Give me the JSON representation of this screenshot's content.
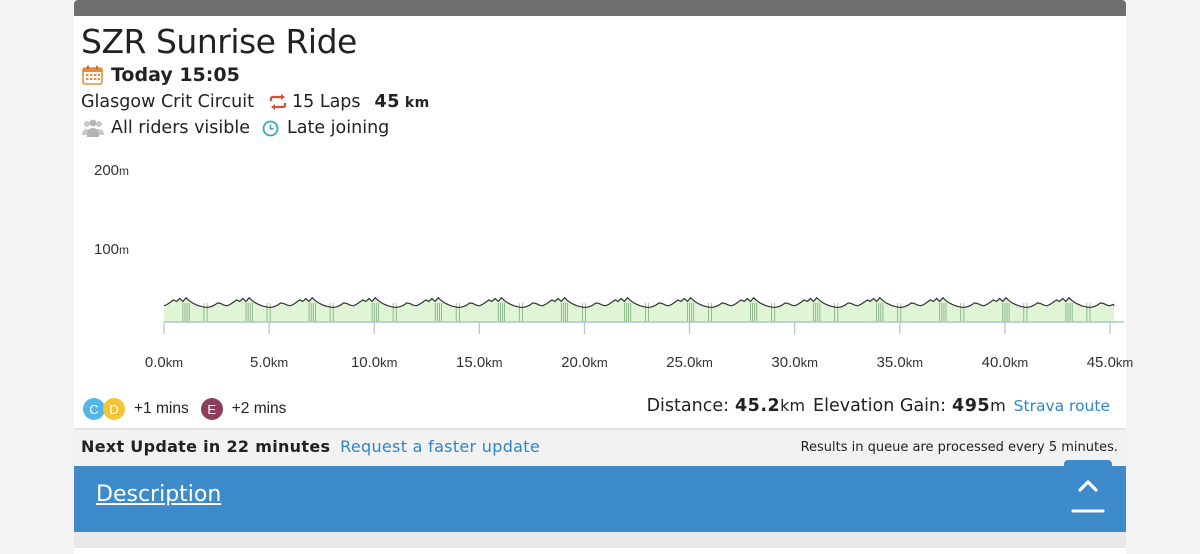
{
  "event": {
    "title": "SZR Sunrise Ride",
    "date": "Today 15:05",
    "route": "Glasgow Crit Circuit",
    "laps": "15 Laps",
    "distance": "45",
    "distance_unit": "km",
    "visibility": "All riders visible",
    "late_joining": "Late joining"
  },
  "chart_data": {
    "type": "area",
    "title": "",
    "xlabel": "",
    "ylabel": "",
    "y_ticks": [
      "200m",
      "100m"
    ],
    "x_ticks": [
      "0.0km",
      "5.0km",
      "10.0km",
      "15.0km",
      "20.0km",
      "25.0km",
      "30.0km",
      "35.0km",
      "40.0km",
      "45.0km"
    ],
    "xlim": [
      0,
      45.2
    ],
    "ylim": [
      0,
      200
    ],
    "lap_length_km": 3,
    "lap_profile": [
      {
        "x": 0.0,
        "y": 22
      },
      {
        "x": 0.15,
        "y": 24
      },
      {
        "x": 0.3,
        "y": 27
      },
      {
        "x": 0.45,
        "y": 30
      },
      {
        "x": 0.6,
        "y": 28
      },
      {
        "x": 0.75,
        "y": 32
      },
      {
        "x": 0.9,
        "y": 28
      },
      {
        "x": 1.05,
        "y": 33
      },
      {
        "x": 1.2,
        "y": 29
      },
      {
        "x": 1.35,
        "y": 26
      },
      {
        "x": 1.5,
        "y": 24
      },
      {
        "x": 1.65,
        "y": 22
      },
      {
        "x": 1.8,
        "y": 21
      },
      {
        "x": 1.95,
        "y": 20
      },
      {
        "x": 2.1,
        "y": 20
      },
      {
        "x": 2.25,
        "y": 21
      },
      {
        "x": 2.4,
        "y": 23
      },
      {
        "x": 2.55,
        "y": 26
      },
      {
        "x": 2.7,
        "y": 25
      },
      {
        "x": 2.85,
        "y": 23
      },
      {
        "x": 3.0,
        "y": 22
      }
    ],
    "colors": {
      "fill": "#dff5d6",
      "stroke": "#333333",
      "marks": "#2e6e2e",
      "axis": "#aac4dc"
    }
  },
  "categories": {
    "c_label": "C",
    "d_label": "D",
    "d_offset": "+1 mins",
    "e_label": "E",
    "e_offset": "+2 mins"
  },
  "stats": {
    "distance_label": "Distance:",
    "distance_value": "45.2",
    "distance_unit": "km",
    "elevation_label": "Elevation Gain:",
    "elevation_value": "495",
    "elevation_unit": "m",
    "strava_link": "Strava route"
  },
  "update": {
    "next_update": "Next Update in 22 minutes",
    "request_faster": "Request a faster update",
    "queue_note": "Results in queue are processed every 5 minutes."
  },
  "description": {
    "label": "Description"
  },
  "colors": {
    "accent_blue": "#3e8bcb",
    "link_blue": "#2e86c8",
    "laps_red": "#d4503a"
  }
}
